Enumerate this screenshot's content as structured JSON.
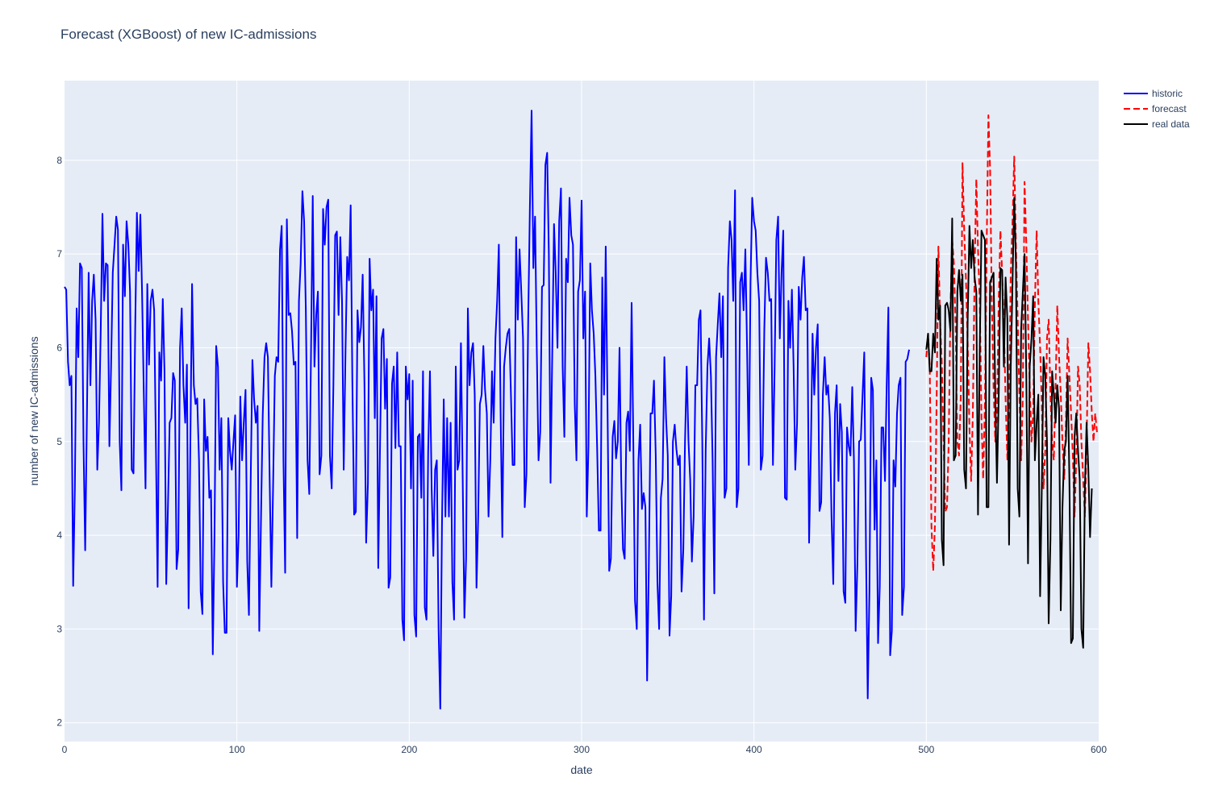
{
  "chart_data": {
    "type": "line",
    "title": "Forecast (XGBoost) of new IC-admissions",
    "xlabel": "date",
    "ylabel": "number of new IC-admissions",
    "xlim": [
      0,
      600
    ],
    "ylim": [
      1.8,
      8.85
    ],
    "xticks": [
      0,
      100,
      200,
      300,
      400,
      500,
      600
    ],
    "yticks": [
      2,
      3,
      4,
      5,
      6,
      7,
      8
    ],
    "grid": true,
    "legend_position": "top-right",
    "colors": {
      "plot_bg": "#E5ECF6",
      "grid": "#ffffff",
      "historic": "#0000ff",
      "forecast": "#ff0000",
      "real": "#000000"
    },
    "series": [
      {
        "name": "historic",
        "style": "solid",
        "color": "#0000ff",
        "x_start": 0,
        "values": [
          6.65,
          6.62,
          5.85,
          5.6,
          5.7,
          3.46,
          4.5,
          6.42,
          5.9,
          6.9,
          6.85,
          5.0,
          3.84,
          5.3,
          6.8,
          5.6,
          6.5,
          6.78,
          6.3,
          4.7,
          5.2,
          6.2,
          7.43,
          6.5,
          6.9,
          6.88,
          4.95,
          5.8,
          6.8,
          7.1,
          7.4,
          7.26,
          5.0,
          4.48,
          7.1,
          6.55,
          7.35,
          7.1,
          6.6,
          4.7,
          4.66,
          6.2,
          7.44,
          6.82,
          7.42,
          6.6,
          5.5,
          4.5,
          6.68,
          5.82,
          6.5,
          6.62,
          6.4,
          5.0,
          3.45,
          5.95,
          5.65,
          6.52,
          5.75,
          3.48,
          4.3,
          5.2,
          5.25,
          5.73,
          5.65,
          3.64,
          3.85,
          6.0,
          6.42,
          5.6,
          5.2,
          5.82,
          3.22,
          5.0,
          6.68,
          5.6,
          5.4,
          5.46,
          4.8,
          3.4,
          3.16,
          5.45,
          4.9,
          5.05,
          4.4,
          4.48,
          2.73,
          4.0,
          6.02,
          5.8,
          4.7,
          5.25,
          3.5,
          2.96,
          2.96,
          5.25,
          4.9,
          4.7,
          5.0,
          5.28,
          3.45,
          4.0,
          5.48,
          4.8,
          5.2,
          5.55,
          3.72,
          3.15,
          4.6,
          5.87,
          5.45,
          5.2,
          5.38,
          2.98,
          4.2,
          5.28,
          5.9,
          6.05,
          5.9,
          4.6,
          3.45,
          4.5,
          5.7,
          5.9,
          5.85,
          7.05,
          7.3,
          4.8,
          3.6,
          7.37,
          6.35,
          6.37,
          6.18,
          5.82,
          5.85,
          3.97,
          6.5,
          6.9,
          7.67,
          7.35,
          6.42,
          4.8,
          4.44,
          5.9,
          7.62,
          5.8,
          6.35,
          6.6,
          4.65,
          4.85,
          7.48,
          7.1,
          7.5,
          7.58,
          4.85,
          4.5,
          5.6,
          7.2,
          7.24,
          6.35,
          7.18,
          6.5,
          4.7,
          5.95,
          6.97,
          6.72,
          7.52,
          5.65,
          4.22,
          4.25,
          6.4,
          6.06,
          6.22,
          6.78,
          5.62,
          3.92,
          4.55,
          6.95,
          6.4,
          6.62,
          5.25,
          6.55,
          3.65,
          4.9,
          6.1,
          6.2,
          5.35,
          5.88,
          3.44,
          3.55,
          5.62,
          5.8,
          4.93,
          5.95,
          4.95,
          4.95,
          3.1,
          2.88,
          5.8,
          5.45,
          5.72,
          4.5,
          5.65,
          3.15,
          2.92,
          5.05,
          5.08,
          4.4,
          5.75,
          3.23,
          3.1,
          4.9,
          5.75,
          4.5,
          3.78,
          4.7,
          4.8,
          3.0,
          2.15,
          4.1,
          5.45,
          4.2,
          5.25,
          4.2,
          5.2,
          3.5,
          3.1,
          5.8,
          4.7,
          4.8,
          6.05,
          4.6,
          3.12,
          3.75,
          6.42,
          5.6,
          5.95,
          6.05,
          5.5,
          3.44,
          4.2,
          5.4,
          5.5,
          6.02,
          5.55,
          5.3,
          4.2,
          4.8,
          5.75,
          5.2,
          6.1,
          6.5,
          7.1,
          5.3,
          3.98,
          5.8,
          6.0,
          6.15,
          6.2,
          5.5,
          4.75,
          4.75,
          7.18,
          6.3,
          7.05,
          6.6,
          6.1,
          4.3,
          4.65,
          6.3,
          7.5,
          8.53,
          6.85,
          7.4,
          6.0,
          4.8,
          5.1,
          6.65,
          6.67,
          7.95,
          8.08,
          7.0,
          4.56,
          6.0,
          7.32,
          6.8,
          6.0,
          7.35,
          7.7,
          5.8,
          5.05,
          6.95,
          6.7,
          7.6,
          7.2,
          7.1,
          5.4,
          4.8,
          6.6,
          6.72,
          7.57,
          6.1,
          6.6,
          4.2,
          4.95,
          6.9,
          6.4,
          6.15,
          5.7,
          4.95,
          4.05,
          4.05,
          6.75,
          5.5,
          7.08,
          5.4,
          3.62,
          3.75,
          5.05,
          5.22,
          4.82,
          5.0,
          6.0,
          4.6,
          3.85,
          3.75,
          5.2,
          5.32,
          4.9,
          6.48,
          5.0,
          3.3,
          3.0,
          4.8,
          5.18,
          4.28,
          4.45,
          4.3,
          2.45,
          3.65,
          5.3,
          5.3,
          5.65,
          4.85,
          3.5,
          3.0,
          4.4,
          4.6,
          5.9,
          5.25,
          4.85,
          2.93,
          3.35,
          5.0,
          5.18,
          4.92,
          4.75,
          4.85,
          3.4,
          3.85,
          5.0,
          5.8,
          5.0,
          4.6,
          3.72,
          4.2,
          5.6,
          5.6,
          6.3,
          6.4,
          5.0,
          3.1,
          4.9,
          5.8,
          6.1,
          5.7,
          4.8,
          3.38,
          5.9,
          6.25,
          6.58,
          5.9,
          6.55,
          4.4,
          4.5,
          6.85,
          7.35,
          7.15,
          6.5,
          7.68,
          4.3,
          4.5,
          6.7,
          6.8,
          6.4,
          7.05,
          6.0,
          4.75,
          6.7,
          7.6,
          7.35,
          7.25,
          6.8,
          6.5,
          4.7,
          4.85,
          6.2,
          6.96,
          6.8,
          6.5,
          6.52,
          4.75,
          5.8,
          7.15,
          7.4,
          6.1,
          6.8,
          7.25,
          4.4,
          4.38,
          6.5,
          6.0,
          6.62,
          5.8,
          4.7,
          5.2,
          6.65,
          6.3,
          6.75,
          6.97,
          6.4,
          6.42,
          3.92,
          4.9,
          6.15,
          5.5,
          6.0,
          6.25,
          4.26,
          4.35,
          5.5,
          5.9,
          5.5,
          5.6,
          5.25,
          4.2,
          3.48,
          5.3,
          5.6,
          4.58,
          5.4,
          5.1,
          3.4,
          3.28,
          5.15,
          4.95,
          4.85,
          5.58,
          4.8,
          2.98,
          3.7,
          5.0,
          5.02,
          5.5,
          5.95,
          3.8,
          2.26,
          3.4,
          5.68,
          5.55,
          4.06,
          4.8,
          2.85,
          3.45,
          5.15,
          5.15,
          4.58,
          5.6,
          6.43,
          2.72,
          2.98,
          4.8,
          4.52,
          5.3,
          5.6,
          5.68,
          3.15,
          3.45,
          5.85,
          5.88,
          5.98
        ]
      },
      {
        "name": "forecast",
        "style": "dash",
        "color": "#ff0000",
        "x_start": 500,
        "values": [
          5.9,
          6.15,
          5.8,
          4.1,
          3.62,
          4.1,
          5.5,
          7.08,
          6.3,
          5.82,
          5.0,
          4.25,
          4.3,
          5.0,
          6.4,
          7.15,
          6.9,
          6.2,
          5.0,
          4.85,
          5.5,
          7.97,
          7.25,
          6.72,
          6.05,
          5.15,
          4.58,
          5.3,
          6.8,
          7.8,
          7.05,
          6.5,
          5.25,
          4.6,
          5.42,
          7.05,
          8.48,
          7.9,
          6.5,
          5.58,
          5.0,
          5.3,
          6.5,
          7.25,
          6.8,
          6.25,
          5.45,
          4.8,
          5.4,
          6.8,
          7.35,
          8.04,
          7.1,
          6.3,
          5.5,
          4.8,
          5.5,
          7.77,
          7.1,
          6.3,
          5.6,
          5.0,
          5.3,
          6.45,
          7.25,
          6.5,
          6.0,
          5.4,
          4.5,
          4.9,
          6.1,
          6.3,
          5.5,
          5.0,
          4.8,
          5.6,
          6.45,
          5.9,
          5.5,
          5.0,
          4.6,
          5.2,
          6.1,
          5.7,
          5.3,
          4.85,
          4.2,
          4.8,
          5.8,
          5.6,
          5.0,
          4.6,
          4.2,
          5.0,
          6.05,
          5.75,
          5.3,
          5.0,
          5.3,
          5.1
        ]
      },
      {
        "name": "real data",
        "style": "solid",
        "color": "#000000",
        "x_start": 500,
        "values": [
          5.98,
          6.15,
          5.75,
          5.75,
          6.15,
          5.95,
          6.95,
          6.3,
          6.45,
          3.95,
          3.68,
          6.45,
          6.48,
          6.4,
          6.18,
          7.38,
          4.8,
          4.85,
          6.6,
          6.83,
          6.5,
          6.78,
          4.7,
          4.5,
          6.3,
          7.3,
          6.85,
          7.15,
          6.75,
          6.6,
          4.22,
          6.0,
          7.25,
          7.2,
          7.15,
          4.3,
          4.3,
          6.7,
          6.75,
          6.8,
          5.5,
          4.56,
          5.5,
          6.85,
          6.83,
          5.8,
          6.75,
          6.3,
          3.9,
          5.8,
          6.7,
          7.6,
          6.9,
          4.5,
          4.2,
          6.2,
          6.6,
          7.0,
          5.7,
          3.7,
          5.8,
          6.1,
          6.55,
          4.8,
          5.2,
          5.5,
          3.35,
          4.5,
          5.9,
          5.7,
          5.0,
          3.06,
          3.95,
          5.75,
          5.5,
          5.2,
          5.6,
          5.35,
          3.2,
          4.3,
          4.9,
          5.0,
          5.7,
          4.6,
          2.85,
          2.9,
          5.05,
          5.3,
          4.9,
          4.6,
          3.0,
          2.8,
          4.5,
          5.2,
          4.7,
          3.98,
          4.5
        ]
      }
    ]
  }
}
